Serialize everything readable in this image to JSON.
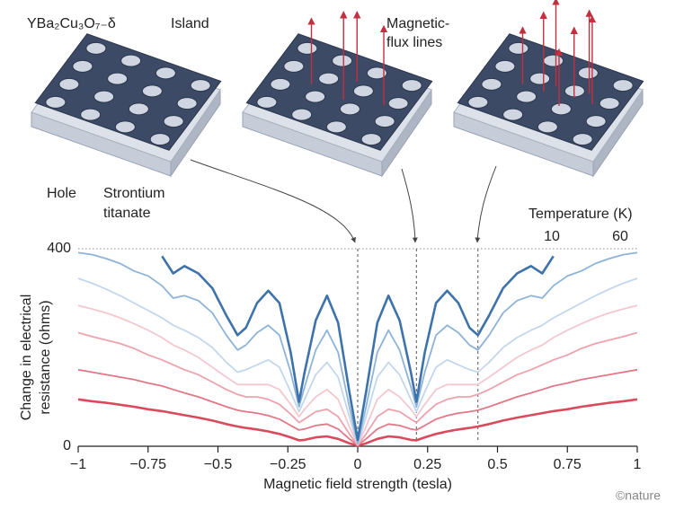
{
  "chart_data": {
    "type": "line",
    "xlabel": "Magnetic field strength (tesla)",
    "ylabel": [
      "Change in electrical",
      "resistance (ohms)"
    ],
    "legend": {
      "title": "Temperature (K)",
      "low": 10,
      "high": 60
    },
    "annotations": {
      "compound": "YBa₂Cu₃O₇₋δ",
      "island": "Island",
      "flux": [
        "Magnetic-",
        "flux lines"
      ],
      "hole": "Hole",
      "substrate": [
        "Strontium",
        "titanate"
      ]
    },
    "credit": "©nature",
    "xlim": [
      -1,
      1
    ],
    "ylim": [
      0,
      400
    ],
    "xticks": [
      {
        "value": -1,
        "label": "−1"
      },
      {
        "value": -0.75,
        "label": "−0.75"
      },
      {
        "value": -0.5,
        "label": "−0.5"
      },
      {
        "value": -0.25,
        "label": "−0.25"
      },
      0,
      0.25,
      0.5,
      0.75,
      1
    ],
    "yticks": [
      0,
      400
    ],
    "vlines": [
      0,
      0.21,
      0.43
    ],
    "x": [
      -1,
      -0.95,
      -0.9,
      -0.85,
      -0.8,
      -0.75,
      -0.7,
      -0.66,
      -0.62,
      -0.57,
      -0.52,
      -0.47,
      -0.43,
      -0.4,
      -0.36,
      -0.32,
      -0.28,
      -0.24,
      -0.21,
      -0.19,
      -0.15,
      -0.11,
      -0.07,
      -0.03,
      0,
      0.03,
      0.07,
      0.11,
      0.15,
      0.19,
      0.21,
      0.24,
      0.28,
      0.32,
      0.36,
      0.4,
      0.43,
      0.47,
      0.52,
      0.57,
      0.62,
      0.66,
      0.7,
      0.75,
      0.8,
      0.85,
      0.9,
      0.95,
      1
    ],
    "series": [
      {
        "color": "#3d72ab",
        "values": [
          null,
          null,
          null,
          null,
          null,
          null,
          385,
          350,
          365,
          350,
          320,
          265,
          225,
          240,
          290,
          315,
          290,
          190,
          90,
          150,
          255,
          305,
          250,
          110,
          13,
          110,
          250,
          305,
          255,
          150,
          90,
          190,
          290,
          315,
          290,
          240,
          225,
          265,
          320,
          350,
          365,
          350,
          385,
          null,
          null,
          null,
          null,
          null,
          null
        ]
      },
      {
        "color": "#8db3d9",
        "values": [
          392,
          388,
          380,
          370,
          355,
          345,
          325,
          300,
          305,
          295,
          270,
          225,
          195,
          205,
          230,
          245,
          225,
          150,
          80,
          120,
          195,
          235,
          190,
          80,
          5,
          80,
          190,
          235,
          195,
          120,
          80,
          150,
          225,
          245,
          230,
          205,
          195,
          225,
          270,
          295,
          305,
          300,
          325,
          345,
          355,
          370,
          380,
          388,
          392
        ]
      },
      {
        "color": "#c3d7ec",
        "values": [
          340,
          330,
          318,
          305,
          290,
          275,
          260,
          245,
          235,
          220,
          200,
          170,
          150,
          155,
          165,
          175,
          160,
          110,
          70,
          95,
          145,
          170,
          140,
          60,
          3,
          60,
          140,
          170,
          145,
          95,
          70,
          110,
          160,
          175,
          165,
          155,
          150,
          170,
          200,
          220,
          235,
          245,
          260,
          275,
          290,
          305,
          318,
          330,
          340
        ]
      },
      {
        "color": "#f3c8ce",
        "values": [
          285,
          278,
          270,
          260,
          248,
          235,
          220,
          205,
          195,
          180,
          160,
          140,
          125,
          125,
          125,
          125,
          115,
          85,
          60,
          75,
          100,
          115,
          95,
          40,
          3,
          40,
          95,
          115,
          100,
          75,
          60,
          85,
          115,
          125,
          125,
          125,
          125,
          140,
          160,
          180,
          195,
          205,
          220,
          235,
          248,
          260,
          270,
          278,
          285
        ]
      },
      {
        "color": "#eea2ad",
        "values": [
          230,
          222,
          215,
          208,
          198,
          185,
          175,
          165,
          155,
          145,
          130,
          115,
          105,
          100,
          100,
          95,
          85,
          65,
          48,
          55,
          70,
          75,
          60,
          25,
          2,
          25,
          60,
          75,
          70,
          55,
          48,
          65,
          85,
          95,
          100,
          100,
          105,
          115,
          130,
          145,
          155,
          165,
          175,
          185,
          198,
          208,
          215,
          222,
          230
        ]
      },
      {
        "color": "#e27887",
        "values": [
          155,
          150,
          145,
          140,
          135,
          128,
          122,
          115,
          108,
          100,
          90,
          80,
          73,
          70,
          67,
          62,
          55,
          42,
          33,
          35,
          42,
          45,
          35,
          15,
          2,
          15,
          35,
          45,
          42,
          35,
          33,
          42,
          55,
          62,
          67,
          70,
          73,
          80,
          90,
          100,
          108,
          115,
          122,
          128,
          135,
          140,
          145,
          150,
          155
        ]
      },
      {
        "color": "#d94a5c",
        "values": [
          95,
          91,
          88,
          84,
          80,
          75,
          71,
          67,
          63,
          58,
          52,
          45,
          40,
          37,
          34,
          30,
          25,
          18,
          12,
          13,
          18,
          20,
          15,
          6,
          1,
          6,
          15,
          20,
          18,
          13,
          12,
          18,
          25,
          30,
          34,
          37,
          40,
          45,
          52,
          58,
          63,
          67,
          71,
          75,
          80,
          84,
          88,
          91,
          95
        ]
      }
    ]
  }
}
